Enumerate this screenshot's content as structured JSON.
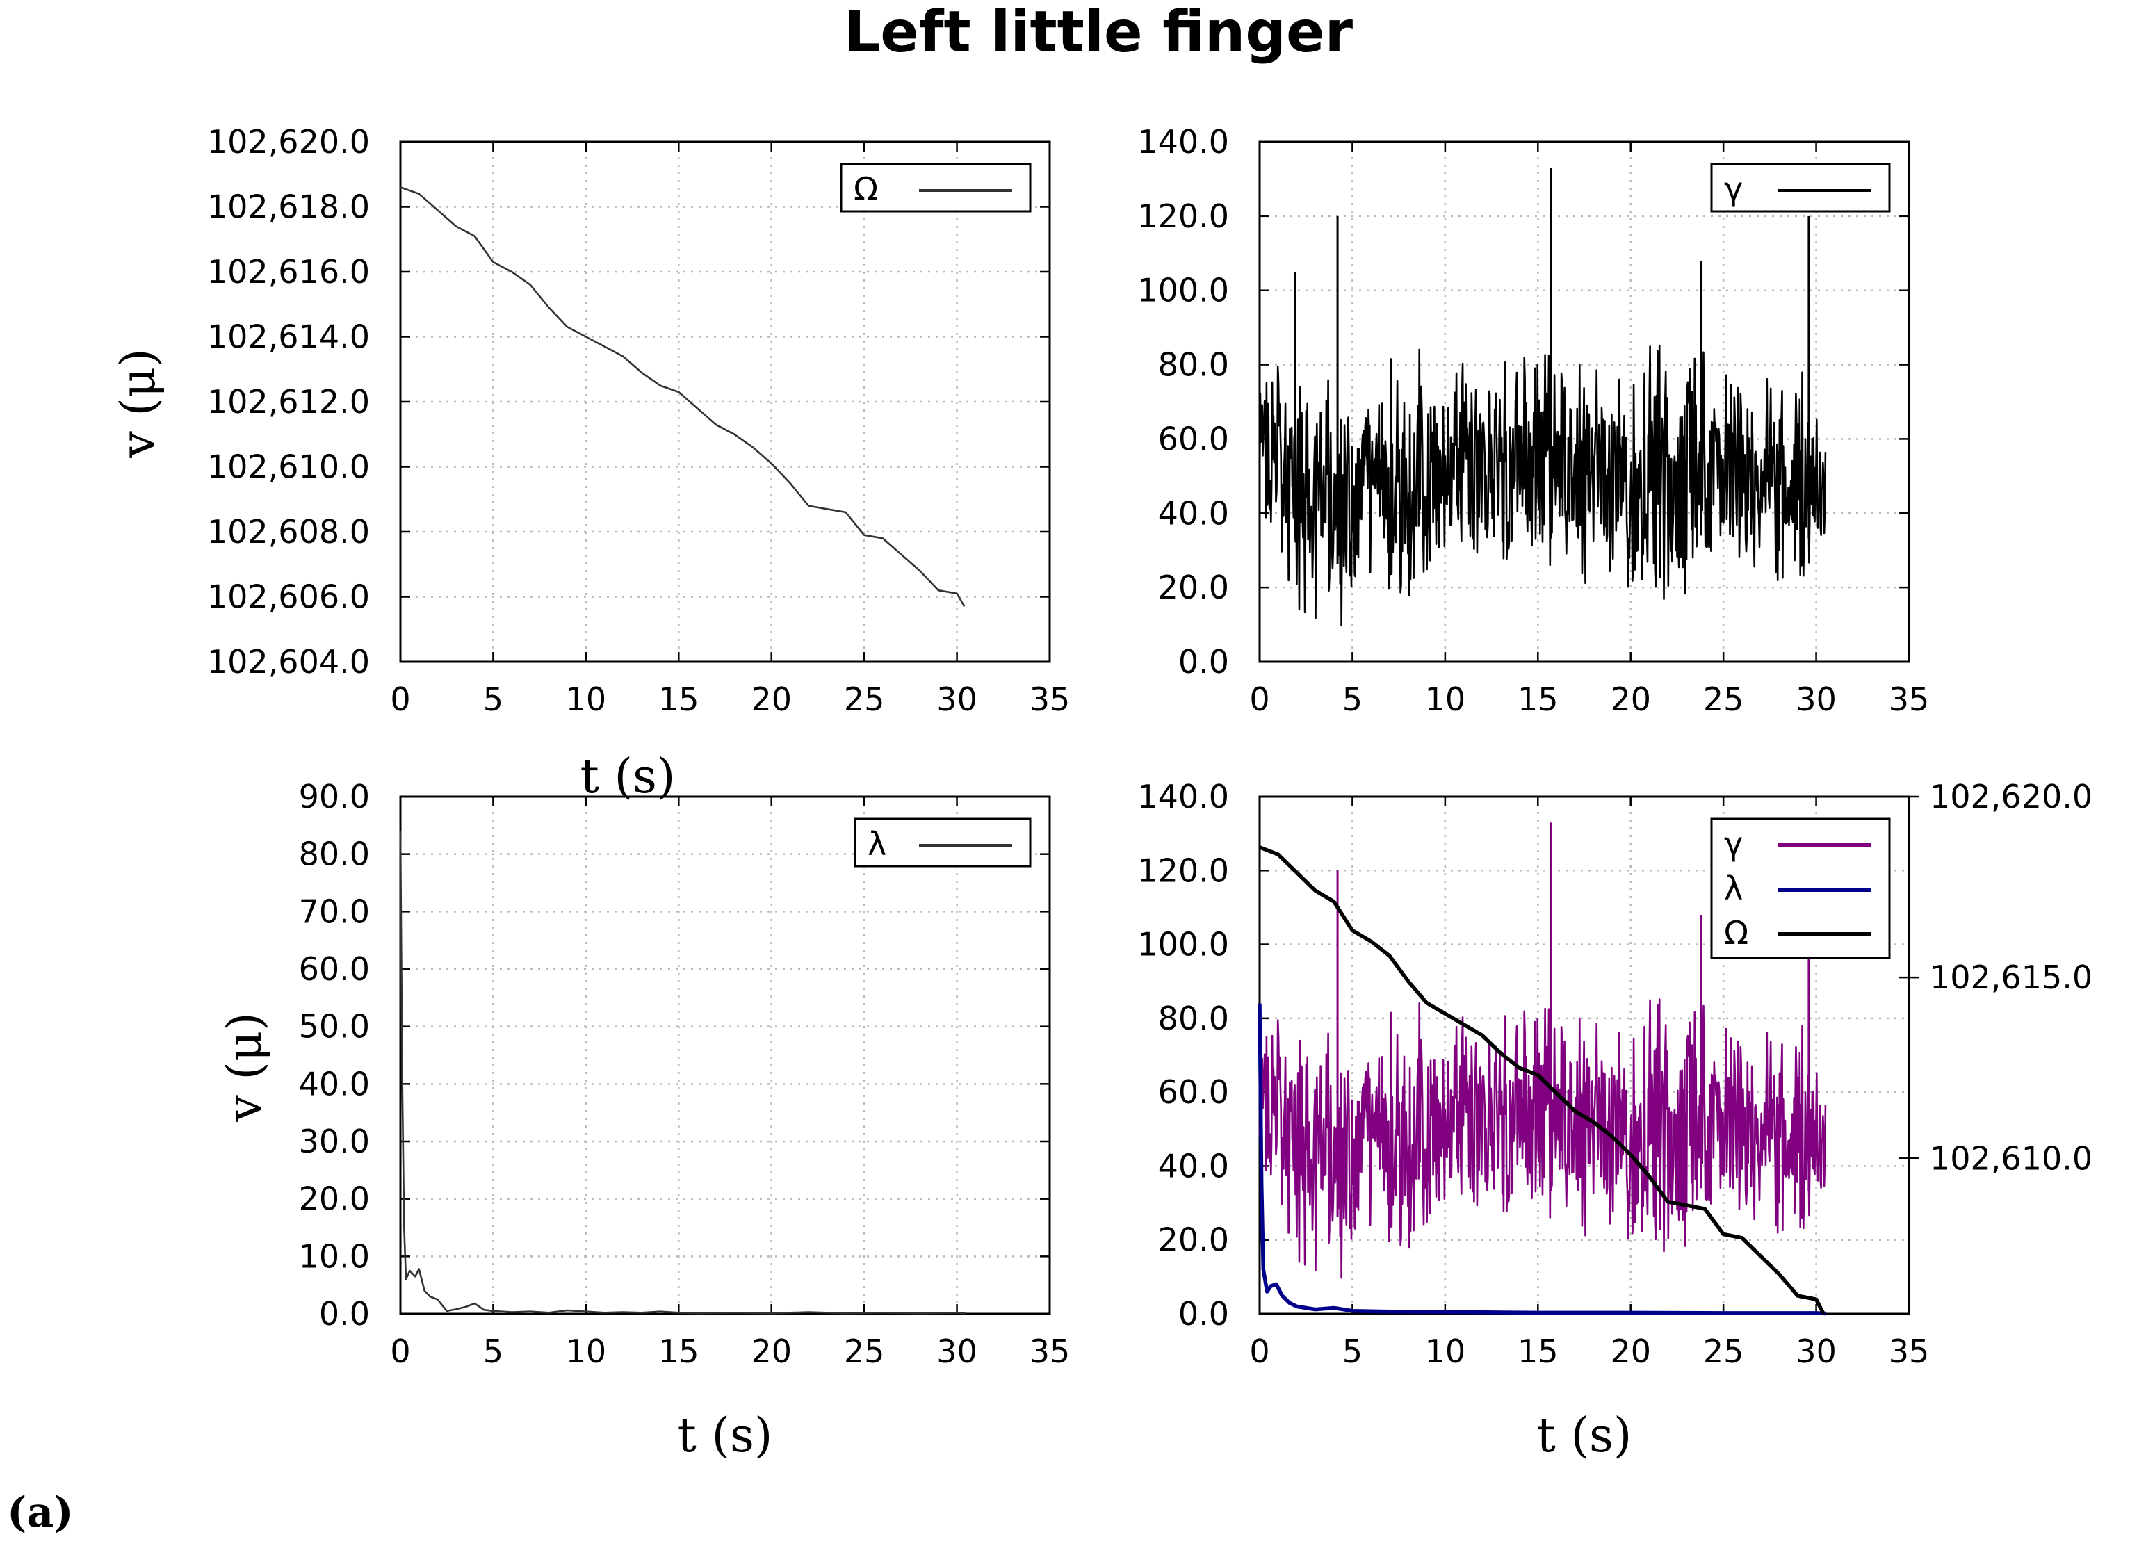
{
  "figure": {
    "title": "Left little finger",
    "panel_label": "(a)"
  },
  "chart_data": [
    {
      "type": "line",
      "panel": "top-left",
      "xlabel": "t (s)",
      "ylabel": "v (μ)",
      "xlim": [
        0,
        35
      ],
      "ylim": [
        102604.0,
        102620.0
      ],
      "xticks": [
        "0",
        "5",
        "10",
        "15",
        "20",
        "25",
        "30",
        "35"
      ],
      "yticks": [
        "102,604.0",
        "102,606.0",
        "102,608.0",
        "102,610.0",
        "102,612.0",
        "102,614.0",
        "102,616.0",
        "102,618.0",
        "102,620.0"
      ],
      "grid": true,
      "legend": "top-right",
      "series": [
        {
          "name": "Ω",
          "color": "#333333",
          "x": [
            0,
            1,
            2,
            3,
            4,
            5,
            6,
            7,
            8,
            9,
            10,
            11,
            12,
            13,
            14,
            15,
            16,
            17,
            18,
            19,
            20,
            21,
            22,
            23,
            24,
            25,
            26,
            27,
            28,
            29,
            30,
            30.4
          ],
          "y": [
            102618.6,
            102618.4,
            102617.9,
            102617.4,
            102617.1,
            102616.3,
            102616.0,
            102615.6,
            102614.9,
            102614.3,
            102614.0,
            102613.7,
            102613.4,
            102612.9,
            102612.5,
            102612.3,
            102611.8,
            102611.3,
            102611.0,
            102610.6,
            102610.1,
            102609.5,
            102608.8,
            102608.7,
            102608.6,
            102607.9,
            102607.8,
            102607.3,
            102606.8,
            102606.2,
            102606.1,
            102605.7
          ]
        }
      ]
    },
    {
      "type": "line",
      "panel": "top-right",
      "xlabel": "",
      "ylabel": "",
      "xlim": [
        0,
        35
      ],
      "ylim": [
        0,
        140
      ],
      "xticks": [
        "0",
        "5",
        "10",
        "15",
        "20",
        "25",
        "30",
        "35"
      ],
      "yticks": [
        "0.0",
        "20.0",
        "40.0",
        "60.0",
        "80.0",
        "100.0",
        "120.0",
        "140.0"
      ],
      "grid": true,
      "legend": "top-right",
      "series": [
        {
          "name": "γ",
          "color": "#000000",
          "x_range": [
            0,
            30.5
          ],
          "envelope_x": [
            0,
            2,
            4,
            6,
            8,
            10,
            12,
            14,
            16,
            18,
            20,
            22,
            24,
            26,
            28,
            30,
            30.5
          ],
          "envelope_low": [
            30,
            12,
            5,
            18,
            8,
            22,
            15,
            20,
            12,
            18,
            10,
            5,
            15,
            20,
            18,
            12,
            30
          ],
          "envelope_high": [
            90,
            80,
            82,
            78,
            88,
            82,
            80,
            92,
            88,
            82,
            85,
            92,
            90,
            85,
            80,
            78,
            62
          ],
          "spikes": [
            {
              "x": 4.2,
              "y": 120
            },
            {
              "x": 15.7,
              "y": 133
            },
            {
              "x": 29.6,
              "y": 120
            },
            {
              "x": 23.8,
              "y": 108
            },
            {
              "x": 1.9,
              "y": 105
            }
          ]
        }
      ]
    },
    {
      "type": "line",
      "panel": "bottom-left",
      "xlabel": "t (s)",
      "ylabel": "v (μ)",
      "xlim": [
        0,
        35
      ],
      "ylim": [
        0,
        90
      ],
      "xticks": [
        "0",
        "5",
        "10",
        "15",
        "20",
        "25",
        "30",
        "35"
      ],
      "yticks": [
        "0.0",
        "10.0",
        "20.0",
        "30.0",
        "40.0",
        "50.0",
        "60.0",
        "70.0",
        "80.0",
        "90.0"
      ],
      "grid": true,
      "legend": "top-right",
      "series": [
        {
          "name": "λ",
          "color": "#333333",
          "x": [
            0,
            0.1,
            0.2,
            0.3,
            0.5,
            0.8,
            1.0,
            1.3,
            1.6,
            2.0,
            2.5,
            3.0,
            3.5,
            4.0,
            4.5,
            5.0,
            6,
            7,
            8,
            9,
            10,
            11,
            12,
            13,
            14,
            15,
            16,
            18,
            20,
            22,
            24,
            26,
            28,
            30,
            30.5
          ],
          "y": [
            84,
            40,
            15,
            6,
            7.5,
            6.5,
            7.8,
            4,
            3,
            2.5,
            0.5,
            0.8,
            1.2,
            1.8,
            0.7,
            0.5,
            0.3,
            0.4,
            0.2,
            0.6,
            0.4,
            0.2,
            0.3,
            0.2,
            0.4,
            0.2,
            0.1,
            0.2,
            0.1,
            0.3,
            0.1,
            0.2,
            0.1,
            0.2,
            0.1
          ]
        }
      ]
    },
    {
      "type": "line",
      "panel": "bottom-right",
      "xlabel": "t (s)",
      "ylabel": "",
      "xlim": [
        0,
        35
      ],
      "ylim": [
        0,
        140
      ],
      "y2lim": [
        102605.7,
        102620.0
      ],
      "xticks": [
        "0",
        "5",
        "10",
        "15",
        "20",
        "25",
        "30",
        "35"
      ],
      "yticks": [
        "0.0",
        "20.0",
        "40.0",
        "60.0",
        "80.0",
        "100.0",
        "120.0",
        "140.0"
      ],
      "y2ticks": [
        "102,610.0",
        "102,615.0",
        "102,620.0"
      ],
      "grid": true,
      "legend": "top-right",
      "series": [
        {
          "name": "γ",
          "color": "#800080",
          "axis": "left",
          "x_range": [
            0,
            30.5
          ],
          "envelope_x": [
            0,
            2,
            4,
            6,
            8,
            10,
            12,
            14,
            16,
            18,
            20,
            22,
            24,
            26,
            28,
            30,
            30.5
          ],
          "envelope_low": [
            30,
            12,
            5,
            18,
            8,
            22,
            15,
            20,
            12,
            18,
            10,
            5,
            15,
            20,
            18,
            12,
            30
          ],
          "envelope_high": [
            90,
            80,
            82,
            78,
            88,
            82,
            80,
            92,
            88,
            82,
            85,
            92,
            90,
            85,
            80,
            78,
            62
          ],
          "spikes": [
            {
              "x": 4.2,
              "y": 120
            },
            {
              "x": 15.7,
              "y": 133
            },
            {
              "x": 29.6,
              "y": 120
            },
            {
              "x": 23.8,
              "y": 108
            }
          ]
        },
        {
          "name": "λ",
          "color": "#00008b",
          "axis": "left",
          "x": [
            0,
            0.1,
            0.2,
            0.4,
            0.6,
            0.9,
            1.2,
            1.6,
            2.0,
            3.0,
            4.0,
            5.0,
            7,
            10,
            15,
            20,
            25,
            30,
            30.5
          ],
          "y": [
            84,
            35,
            12,
            6,
            7.5,
            8,
            5,
            3,
            2,
            1.2,
            1.6,
            0.8,
            0.6,
            0.5,
            0.3,
            0.3,
            0.2,
            0.2,
            0.1
          ]
        },
        {
          "name": "Ω",
          "color": "#000000",
          "axis": "right",
          "x": [
            0,
            1,
            2,
            3,
            4,
            5,
            6,
            7,
            8,
            9,
            10,
            11,
            12,
            13,
            14,
            15,
            16,
            17,
            18,
            19,
            20,
            21,
            22,
            23,
            24,
            25,
            26,
            27,
            28,
            29,
            30,
            30.4
          ],
          "y": [
            102618.6,
            102618.4,
            102617.9,
            102617.4,
            102617.1,
            102616.3,
            102616.0,
            102615.6,
            102614.9,
            102614.3,
            102614.0,
            102613.7,
            102613.4,
            102612.9,
            102612.5,
            102612.3,
            102611.8,
            102611.3,
            102611.0,
            102610.6,
            102610.1,
            102609.5,
            102608.8,
            102608.7,
            102608.6,
            102607.9,
            102607.8,
            102607.3,
            102606.8,
            102606.2,
            102606.1,
            102605.7
          ]
        }
      ]
    }
  ]
}
